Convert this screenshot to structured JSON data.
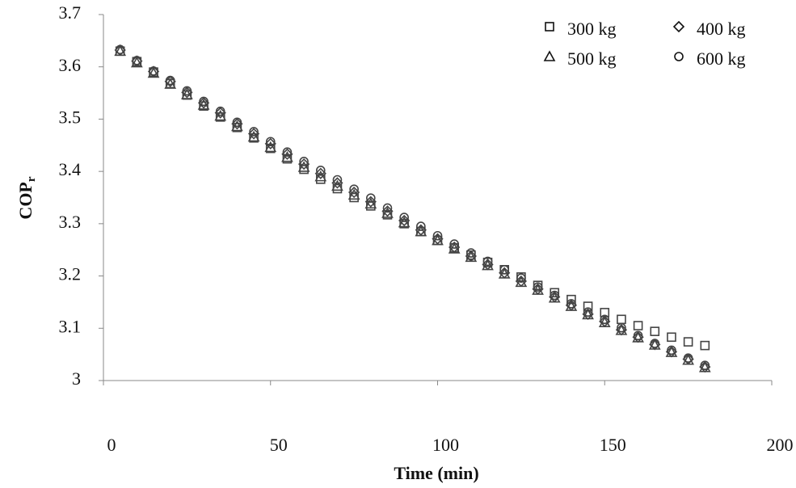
{
  "chart_data": {
    "type": "scatter",
    "xlabel": "Time (min)",
    "ylabel": {
      "text": "COP",
      "subscript": "r"
    },
    "xlim": [
      0,
      200
    ],
    "xticks": [
      0,
      50,
      100,
      150,
      200
    ],
    "ylim": [
      3,
      3.7
    ],
    "yticks": [
      3,
      3.1,
      3.2,
      3.3,
      3.4,
      3.5,
      3.6,
      3.7
    ],
    "x": [
      5,
      10,
      15,
      20,
      25,
      30,
      35,
      40,
      45,
      50,
      55,
      60,
      65,
      70,
      75,
      80,
      85,
      90,
      95,
      100,
      105,
      110,
      115,
      120,
      125,
      130,
      135,
      140,
      145,
      150,
      155,
      160,
      165,
      170,
      175,
      180
    ],
    "series": [
      {
        "name": "300 kg",
        "marker": "square",
        "color": "#444444",
        "values": [
          3.63,
          3.61,
          3.59,
          3.568,
          3.546,
          3.525,
          3.504,
          3.484,
          3.464,
          3.444,
          3.424,
          3.404,
          3.385,
          3.367,
          3.35,
          3.334,
          3.317,
          3.3,
          3.285,
          3.268,
          3.254,
          3.24,
          3.226,
          3.212,
          3.198,
          3.182,
          3.168,
          3.155,
          3.142,
          3.13,
          3.117,
          3.105,
          3.094,
          3.083,
          3.074,
          3.067
        ]
      },
      {
        "name": "400 kg",
        "marker": "diamond",
        "color": "#444444",
        "values": [
          3.632,
          3.611,
          3.591,
          3.572,
          3.551,
          3.531,
          3.512,
          3.491,
          3.472,
          3.453,
          3.433,
          3.414,
          3.396,
          3.378,
          3.36,
          3.342,
          3.324,
          3.306,
          3.288,
          3.271,
          3.255,
          3.238,
          3.222,
          3.206,
          3.19,
          3.175,
          3.16,
          3.144,
          3.127,
          3.113,
          3.097,
          3.083,
          3.069,
          3.055,
          3.041,
          3.026
        ]
      },
      {
        "name": "500 kg",
        "marker": "triangle",
        "color": "#444444",
        "values": [
          3.63,
          3.608,
          3.588,
          3.567,
          3.547,
          3.527,
          3.506,
          3.486,
          3.466,
          3.446,
          3.427,
          3.408,
          3.39,
          3.372,
          3.355,
          3.338,
          3.32,
          3.302,
          3.285,
          3.268,
          3.252,
          3.236,
          3.22,
          3.204,
          3.188,
          3.173,
          3.158,
          3.142,
          3.126,
          3.111,
          3.096,
          3.082,
          3.068,
          3.054,
          3.039,
          3.025
        ]
      },
      {
        "name": "600 kg",
        "marker": "circle",
        "color": "#444444",
        "values": [
          3.633,
          3.612,
          3.592,
          3.574,
          3.554,
          3.534,
          3.515,
          3.494,
          3.476,
          3.457,
          3.437,
          3.419,
          3.402,
          3.384,
          3.366,
          3.349,
          3.33,
          3.312,
          3.295,
          3.277,
          3.261,
          3.244,
          3.228,
          3.212,
          3.196,
          3.179,
          3.163,
          3.147,
          3.131,
          3.117,
          3.101,
          3.086,
          3.071,
          3.058,
          3.043,
          3.029
        ]
      }
    ]
  }
}
